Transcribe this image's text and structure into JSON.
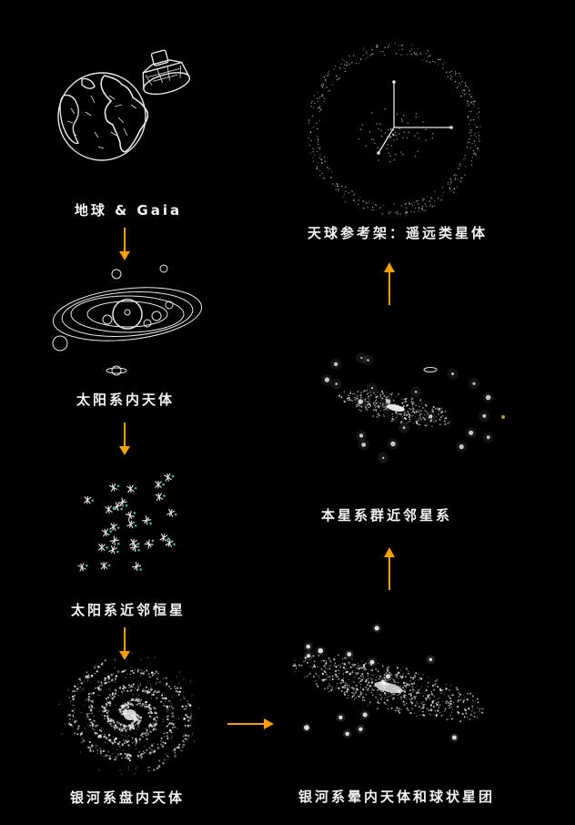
{
  "colors": {
    "background": "#000000",
    "arrow": "#f5a000",
    "text": "#f2f2f2",
    "sketch": "#e8e8e8",
    "star_accent": "#3fb98a"
  },
  "nodes": [
    {
      "id": "earth-gaia",
      "label": "地球 & Gaia",
      "icon": "earth-and-gaia-satellite-icon"
    },
    {
      "id": "solar-system",
      "label": "太阳系内天体",
      "icon": "solar-system-icon"
    },
    {
      "id": "nearby-stars",
      "label": "太阳系近邻恒星",
      "icon": "star-cluster-icon"
    },
    {
      "id": "galactic-disk",
      "label": "银河系盘内天体",
      "icon": "spiral-galaxy-icon"
    },
    {
      "id": "galactic-halo",
      "label": "银河系晕内天体和球状星团",
      "icon": "edge-on-galaxy-icon"
    },
    {
      "id": "local-group",
      "label": "本星系群近邻星系",
      "icon": "local-group-galaxies-icon"
    },
    {
      "id": "celestial-frame",
      "label": "天球参考架：遥远类星体",
      "icon": "celestial-sphere-axes-icon"
    }
  ]
}
